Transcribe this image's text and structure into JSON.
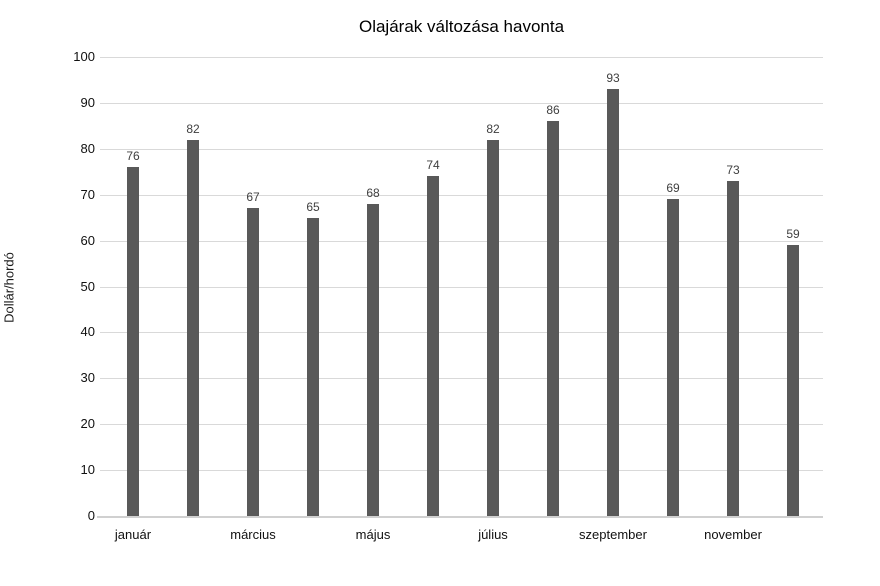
{
  "chart_data": {
    "type": "bar",
    "title": "Olajárak változása havonta",
    "xlabel": "",
    "ylabel": "Dollár/hordó",
    "values": [
      76,
      82,
      67,
      65,
      68,
      74,
      82,
      86,
      93,
      69,
      73,
      59
    ],
    "value_labels": [
      "76",
      "82",
      "67",
      "65",
      "68",
      "74",
      "82",
      "86",
      "93",
      "69",
      "73",
      "59"
    ],
    "x_tick_labels": [
      "január",
      "március",
      "május",
      "július",
      "szeptember",
      "november"
    ],
    "x_tick_bar_indices": [
      0,
      2,
      4,
      6,
      8,
      10
    ],
    "y_tick_labels": [
      "0",
      "10",
      "20",
      "30",
      "40",
      "50",
      "60",
      "70",
      "80",
      "90",
      "100"
    ],
    "y_ticks": [
      0,
      10,
      20,
      30,
      40,
      50,
      60,
      70,
      80,
      90,
      100
    ],
    "ylim": [
      0,
      100
    ],
    "grid": "horizontal",
    "legend": "none",
    "colors": {
      "bar": "#595959",
      "gridline": "#d9d9d9",
      "axis_line": "#d0d0d0",
      "title_text": "#000000",
      "tick_text": "#111111",
      "value_text": "#404040"
    }
  }
}
